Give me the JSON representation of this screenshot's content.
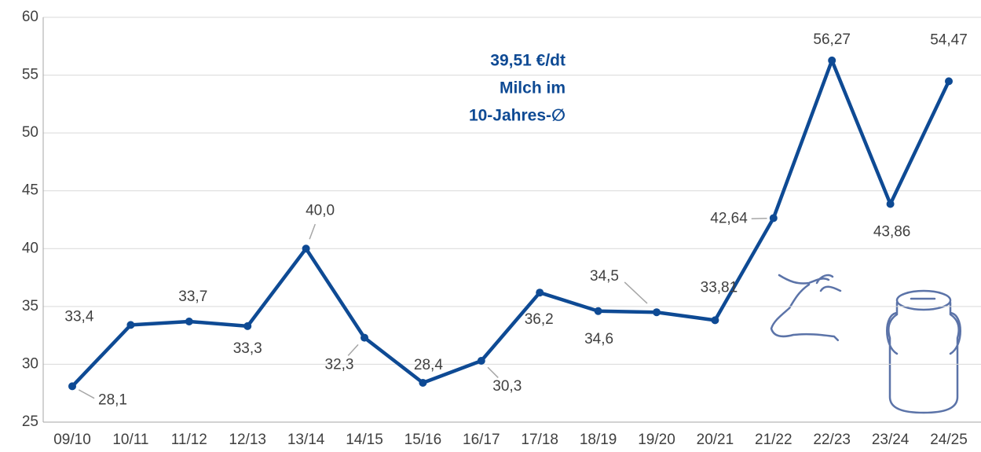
{
  "chart_data": {
    "type": "line",
    "categories": [
      "09/10",
      "10/11",
      "11/12",
      "12/13",
      "13/14",
      "14/15",
      "15/16",
      "16/17",
      "17/18",
      "18/19",
      "19/20",
      "20/21",
      "21/22",
      "22/23",
      "23/24",
      "24/25"
    ],
    "series": [
      {
        "color": "#0e4a94",
        "values": [
          28.1,
          33.4,
          33.7,
          33.3,
          40.0,
          32.3,
          28.4,
          30.3,
          36.2,
          34.6,
          34.5,
          33.81,
          42.64,
          56.27,
          43.86,
          54.47
        ],
        "value_labels": [
          "28,1",
          "33,4",
          "33,7",
          "33,3",
          "40,0",
          "32,3",
          "28,4",
          "30,3",
          "36,2",
          "34,6",
          "34,5",
          "33,81",
          "42,64",
          "56,27",
          "43,86",
          "54,47"
        ]
      }
    ],
    "ylim": [
      25,
      60
    ],
    "yticks": [
      25,
      30,
      35,
      40,
      45,
      50,
      55,
      60
    ],
    "grid": true,
    "annotation": [
      "39,51 €/dt",
      "Milch im",
      "10-Jahres-∅"
    ]
  }
}
